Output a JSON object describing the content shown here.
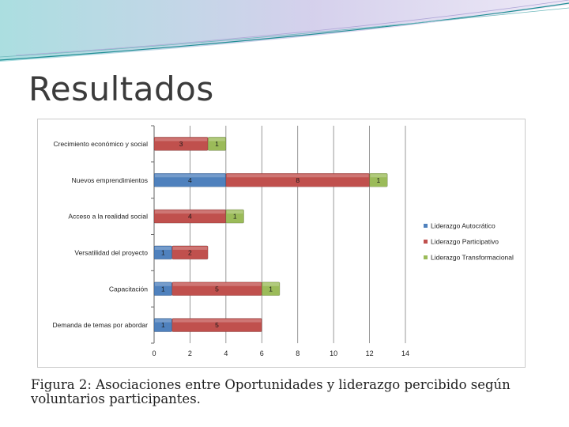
{
  "slide": {
    "title": "Resultados",
    "caption": "Figura 2: Asociaciones entre Oportunidades y liderazgo percibido según voluntarios participantes."
  },
  "colors": {
    "autocratico": "#4f81bd",
    "participativo": "#c0504d",
    "transformacional": "#9bbb59",
    "grid": "#7f7f7f",
    "swoosh": "#1f8f94"
  },
  "chart_data": {
    "type": "bar",
    "orientation": "horizontal",
    "stacked": true,
    "title": "",
    "xlabel": "",
    "ylabel": "",
    "xlim": [
      0,
      14
    ],
    "xticks": [
      0,
      2,
      4,
      6,
      8,
      10,
      12,
      14
    ],
    "grid": true,
    "legend_position": "right",
    "categories": [
      "Crecimiento económico y social",
      "Nuevos emprendimientos",
      "Acceso a la realidad social",
      "Versatilidad del proyecto",
      "Capacitación",
      "Demanda de temas por abordar"
    ],
    "series": [
      {
        "name": "Liderazgo Autocrático",
        "values": [
          0,
          4,
          0,
          1,
          1,
          1
        ]
      },
      {
        "name": "Liderazgo Participativo",
        "values": [
          3,
          8,
          4,
          2,
          5,
          5
        ]
      },
      {
        "name": "Liderazgo Transformacional",
        "values": [
          1,
          1,
          1,
          0,
          1,
          0
        ]
      }
    ]
  }
}
